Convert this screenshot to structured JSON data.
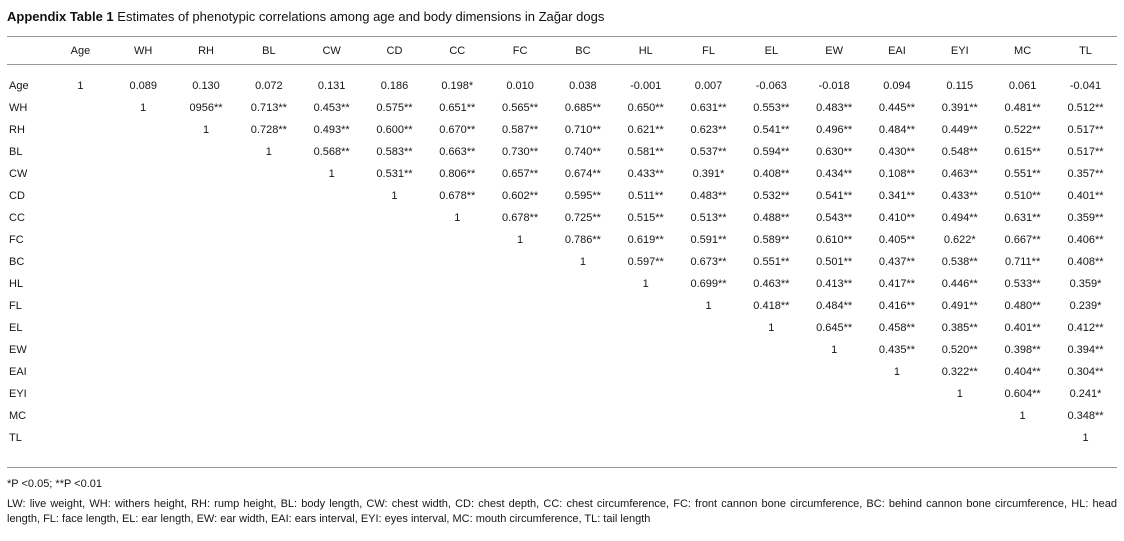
{
  "title": {
    "bold": "Appendix Table 1",
    "rest": " Estimates of phenotypic correlations among age and body dimensions in Zağar dogs"
  },
  "table": {
    "columns": [
      "",
      "Age",
      "WH",
      "RH",
      "BL",
      "CW",
      "CD",
      "CC",
      "FC",
      "BC",
      "HL",
      "FL",
      "EL",
      "EW",
      "EAI",
      "EYI",
      "MC",
      "TL"
    ],
    "rows": [
      {
        "label": "Age",
        "values": [
          "1",
          "0.089",
          "0.130",
          "0.072",
          "0.131",
          "0.186",
          "0.198*",
          "0.010",
          "0.038",
          "-0.001",
          "0.007",
          "-0.063",
          "-0.018",
          "0.094",
          "0.115",
          "0.061",
          "-0.041"
        ]
      },
      {
        "label": "WH",
        "values": [
          "",
          "1",
          "0956**",
          "0.713**",
          "0.453**",
          "0.575**",
          "0.651**",
          "0.565**",
          "0.685**",
          "0.650**",
          "0.631**",
          "0.553**",
          "0.483**",
          "0.445**",
          "0.391**",
          "0.481**",
          "0.512**"
        ]
      },
      {
        "label": "RH",
        "values": [
          "",
          "",
          "1",
          "0.728**",
          "0.493**",
          "0.600**",
          "0.670**",
          "0.587**",
          "0.710**",
          "0.621**",
          "0.623**",
          "0.541**",
          "0.496**",
          "0.484**",
          "0.449**",
          "0.522**",
          "0.517**"
        ]
      },
      {
        "label": "BL",
        "values": [
          "",
          "",
          "",
          "1",
          "0.568**",
          "0.583**",
          "0.663**",
          "0.730**",
          "0.740**",
          "0.581**",
          "0.537**",
          "0.594**",
          "0.630**",
          "0.430**",
          "0.548**",
          "0.615**",
          "0.517**"
        ]
      },
      {
        "label": "CW",
        "values": [
          "",
          "",
          "",
          "",
          "1",
          "0.531**",
          "0.806**",
          "0.657**",
          "0.674**",
          "0.433**",
          "0.391*",
          "0.408**",
          "0.434**",
          "0.108**",
          "0.463**",
          "0.551**",
          "0.357**"
        ]
      },
      {
        "label": "CD",
        "values": [
          "",
          "",
          "",
          "",
          "",
          "1",
          "0.678**",
          "0.602**",
          "0.595**",
          "0.511**",
          "0.483**",
          "0.532**",
          "0.541**",
          "0.341**",
          "0.433**",
          "0.510**",
          "0.401**"
        ]
      },
      {
        "label": "CC",
        "values": [
          "",
          "",
          "",
          "",
          "",
          "",
          "1",
          "0.678**",
          "0.725**",
          "0.515**",
          "0.513**",
          "0.488**",
          "0.543**",
          "0.410**",
          "0.494**",
          "0.631**",
          "0.359**"
        ]
      },
      {
        "label": "FC",
        "values": [
          "",
          "",
          "",
          "",
          "",
          "",
          "",
          "1",
          "0.786**",
          "0.619**",
          "0.591**",
          "0.589**",
          "0.610**",
          "0.405**",
          "0.622*",
          "0.667**",
          "0.406**"
        ]
      },
      {
        "label": "BC",
        "values": [
          "",
          "",
          "",
          "",
          "",
          "",
          "",
          "",
          "1",
          "0.597**",
          "0.673**",
          "0.551**",
          "0.501**",
          "0.437**",
          "0.538**",
          "0.711**",
          "0.408**"
        ]
      },
      {
        "label": "HL",
        "values": [
          "",
          "",
          "",
          "",
          "",
          "",
          "",
          "",
          "",
          "1",
          "0.699**",
          "0.463**",
          "0.413**",
          "0.417**",
          "0.446**",
          "0.533**",
          "0.359*"
        ]
      },
      {
        "label": "FL",
        "values": [
          "",
          "",
          "",
          "",
          "",
          "",
          "",
          "",
          "",
          "",
          "1",
          "0.418**",
          "0.484**",
          "0.416**",
          "0.491**",
          "0.480**",
          "0.239*"
        ]
      },
      {
        "label": "EL",
        "values": [
          "",
          "",
          "",
          "",
          "",
          "",
          "",
          "",
          "",
          "",
          "",
          "1",
          "0.645**",
          "0.458**",
          "0.385**",
          "0.401**",
          "0.412**"
        ]
      },
      {
        "label": "EW",
        "values": [
          "",
          "",
          "",
          "",
          "",
          "",
          "",
          "",
          "",
          "",
          "",
          "",
          "1",
          "0.435**",
          "0.520**",
          "0.398**",
          "0.394**"
        ]
      },
      {
        "label": "EAI",
        "values": [
          "",
          "",
          "",
          "",
          "",
          "",
          "",
          "",
          "",
          "",
          "",
          "",
          "",
          "1",
          "0.322**",
          "0.404**",
          "0.304**"
        ]
      },
      {
        "label": "EYI",
        "values": [
          "",
          "",
          "",
          "",
          "",
          "",
          "",
          "",
          "",
          "",
          "",
          "",
          "",
          "",
          "1",
          "0.604**",
          "0.241*"
        ]
      },
      {
        "label": "MC",
        "values": [
          "",
          "",
          "",
          "",
          "",
          "",
          "",
          "",
          "",
          "",
          "",
          "",
          "",
          "",
          "",
          "1",
          "0.348**"
        ]
      },
      {
        "label": "TL",
        "values": [
          "",
          "",
          "",
          "",
          "",
          "",
          "",
          "",
          "",
          "",
          "",
          "",
          "",
          "",
          "",
          "",
          "1"
        ]
      }
    ]
  },
  "footnotes": {
    "significance": "*P <0.05; **P <0.01",
    "abbreviations": "LW: live weight, WH: withers height, RH: rump height, BL: body length, CW: chest width, CD: chest depth, CC: chest circumference, FC: front cannon bone circumference, BC: behind cannon bone circumference, HL: head length, FL: face length, EL: ear length, EW: ear width, EAI: ears interval, EYI: eyes interval, MC: mouth circumference, TL: tail length"
  }
}
